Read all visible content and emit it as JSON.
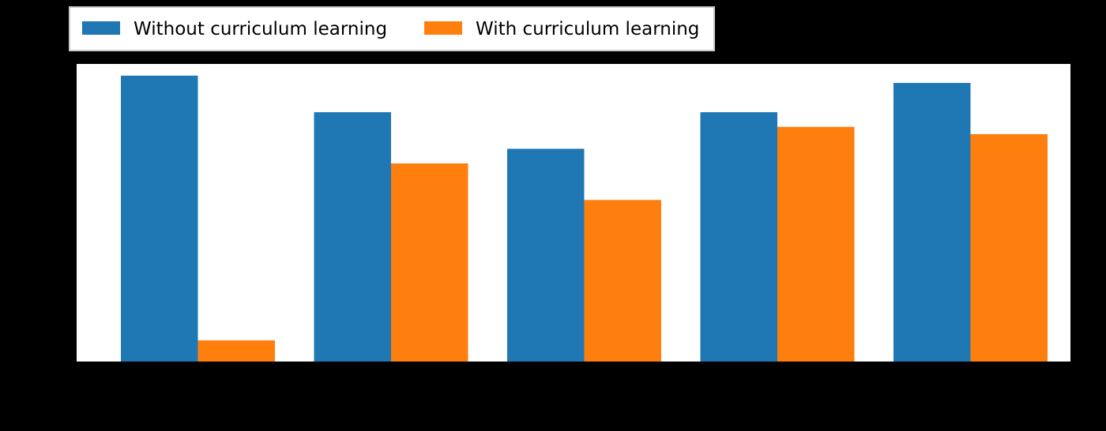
{
  "chart_data": {
    "type": "bar",
    "categories": [
      "",
      "",
      "",
      "",
      ""
    ],
    "series": [
      {
        "name": "Without curriculum learning",
        "color": "#1f77b4",
        "values": [
          0.98,
          0.855,
          0.73,
          0.855,
          0.955
        ]
      },
      {
        "name": "With curriculum learning",
        "color": "#ff7f0e",
        "values": [
          0.075,
          0.68,
          0.555,
          0.805,
          0.78
        ]
      }
    ],
    "ylim": [
      0,
      1.02
    ],
    "legend_position": "top-left, above plot",
    "grid": false,
    "title": "",
    "xlabel": "",
    "ylabel": ""
  }
}
